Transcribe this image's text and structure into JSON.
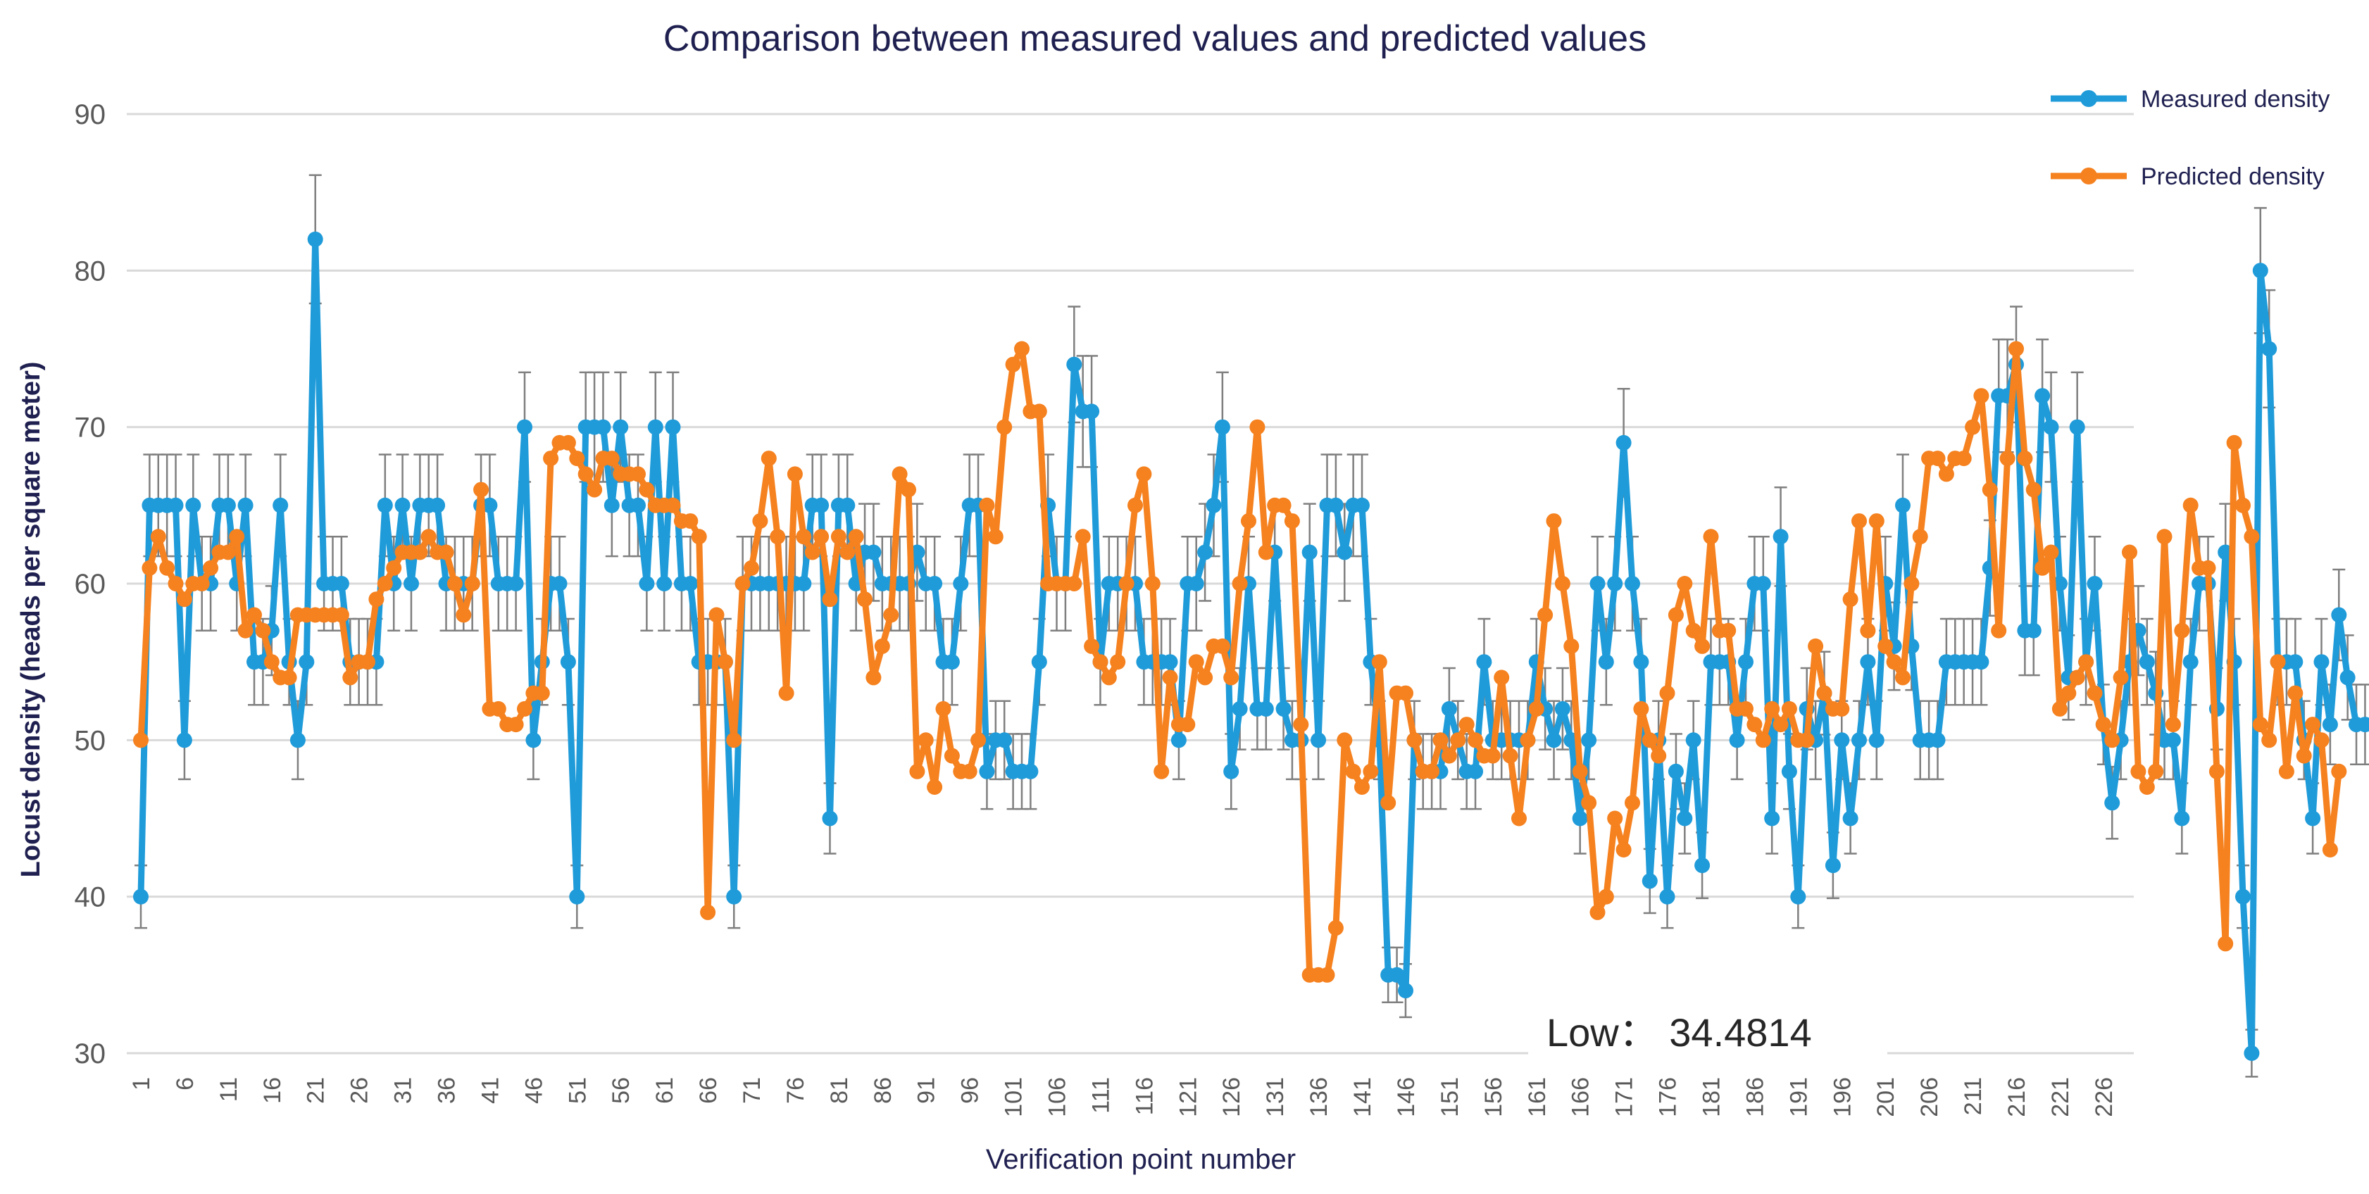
{
  "colors": {
    "measured": "#1f9bd9",
    "predicted": "#f5811f",
    "grid": "#d9d9d9",
    "errorbar": "#7f7f7f",
    "title": "#1f2050"
  },
  "chart_data": {
    "type": "line",
    "title": "Comparison between measured values and predicted values",
    "xlabel": "Verification point number",
    "ylabel": "Locust density (heads per square meter)",
    "ylim": [
      30,
      90
    ],
    "yticks": [
      30,
      40,
      50,
      60,
      70,
      80,
      90
    ],
    "x_range": [
      1,
      229
    ],
    "xticks": [
      1,
      6,
      11,
      16,
      21,
      26,
      31,
      36,
      41,
      46,
      51,
      56,
      61,
      66,
      71,
      76,
      81,
      86,
      91,
      96,
      101,
      106,
      111,
      116,
      121,
      126,
      131,
      136,
      141,
      146,
      151,
      156,
      161,
      166,
      171,
      176,
      181,
      186,
      191,
      196,
      201,
      206,
      211,
      216,
      221,
      226
    ],
    "grid": true,
    "legend_position": "top-right",
    "error_bar_relative": 0.05,
    "annotation": {
      "text": "Low：  34.4814",
      "x_data": 175,
      "y_data": 31.4
    },
    "series": [
      {
        "name": "Measured density",
        "values": [
          40,
          65,
          65,
          65,
          65,
          50,
          65,
          60,
          60,
          65,
          65,
          60,
          65,
          55,
          55,
          57,
          65,
          55,
          50,
          55,
          82,
          60,
          60,
          60,
          55,
          55,
          55,
          55,
          65,
          60,
          65,
          60,
          65,
          65,
          65,
          60,
          60,
          60,
          60,
          65,
          65,
          60,
          60,
          60,
          70,
          50,
          55,
          60,
          60,
          55,
          40,
          70,
          70,
          70,
          65,
          70,
          65,
          65,
          60,
          70,
          60,
          70,
          60,
          60,
          55,
          55,
          55,
          55,
          40,
          60,
          60,
          60,
          60,
          60,
          60,
          60,
          60,
          65,
          65,
          45,
          65,
          65,
          60,
          62,
          62,
          60,
          60,
          60,
          60,
          62,
          60,
          60,
          55,
          55,
          60,
          65,
          65,
          48,
          50,
          50,
          48,
          48,
          48,
          55,
          65,
          60,
          60,
          74,
          71,
          71,
          55,
          60,
          60,
          60,
          60,
          55,
          55,
          55,
          55,
          50,
          60,
          60,
          62,
          65,
          70,
          48,
          52,
          60,
          52,
          52,
          62,
          52,
          50,
          50,
          62,
          50,
          65,
          65,
          62,
          65,
          65,
          55,
          50,
          35,
          35,
          34,
          50,
          48,
          48,
          48,
          52,
          50,
          48,
          48,
          55,
          50,
          50,
          50,
          50,
          50,
          55,
          52,
          50,
          52,
          50,
          45,
          50,
          60,
          55,
          60,
          69,
          60,
          55,
          41,
          50,
          40,
          48,
          45,
          50,
          42,
          55,
          55,
          55,
          50,
          55,
          60,
          60,
          45,
          63,
          48,
          40,
          52,
          50,
          53,
          42,
          50,
          45,
          50,
          55,
          50,
          60,
          56,
          65,
          56,
          50,
          50,
          50,
          55,
          55,
          55,
          55,
          55,
          61,
          72,
          72,
          74,
          57,
          57,
          72,
          70,
          60,
          54,
          70,
          55,
          60,
          51,
          46,
          50,
          55,
          57,
          55,
          53,
          50,
          50,
          45,
          55,
          60,
          60,
          52,
          62,
          55,
          40,
          30,
          80,
          75,
          55,
          55,
          55,
          50,
          45,
          55,
          51,
          58,
          54,
          51,
          51
        ]
      },
      {
        "name": "Predicted density",
        "values": [
          50,
          61,
          63,
          61,
          60,
          59,
          60,
          60,
          61,
          62,
          62,
          63,
          57,
          58,
          57,
          55,
          54,
          54,
          58,
          58,
          58,
          58,
          58,
          58,
          54,
          55,
          55,
          59,
          60,
          61,
          62,
          62,
          62,
          63,
          62,
          62,
          60,
          58,
          60,
          66,
          52,
          52,
          51,
          51,
          52,
          53,
          53,
          68,
          69,
          69,
          68,
          67,
          66,
          68,
          68,
          67,
          67,
          67,
          66,
          65,
          65,
          65,
          64,
          64,
          63,
          39,
          58,
          55,
          50,
          60,
          61,
          64,
          68,
          63,
          53,
          67,
          63,
          62,
          63,
          59,
          63,
          62,
          63,
          59,
          54,
          56,
          58,
          67,
          66,
          48,
          50,
          47,
          52,
          49,
          48,
          48,
          50,
          65,
          63,
          70,
          74,
          75,
          71,
          71,
          60,
          60,
          60,
          60,
          63,
          56,
          55,
          54,
          55,
          60,
          65,
          67,
          60,
          48,
          54,
          51,
          51,
          55,
          54,
          56,
          56,
          54,
          60,
          64,
          70,
          62,
          65,
          65,
          64,
          51,
          35,
          35,
          35,
          38,
          50,
          48,
          47,
          48,
          55,
          46,
          53,
          53,
          50,
          48,
          48,
          50,
          49,
          50,
          51,
          50,
          49,
          49,
          54,
          49,
          45,
          50,
          52,
          58,
          64,
          60,
          56,
          48,
          46,
          39,
          40,
          45,
          43,
          46,
          52,
          50,
          49,
          53,
          58,
          60,
          57,
          56,
          63,
          57,
          57,
          52,
          52,
          51,
          50,
          52,
          51,
          52,
          50,
          50,
          56,
          53,
          52,
          52,
          59,
          64,
          57,
          64,
          56,
          55,
          54,
          60,
          63,
          68,
          68,
          67,
          68,
          68,
          70,
          72,
          66,
          57,
          68,
          75,
          68,
          66,
          61,
          62,
          52,
          53,
          54,
          55,
          53,
          51,
          50,
          54,
          62,
          48,
          47,
          48,
          63,
          51,
          57,
          65,
          61,
          61,
          48,
          37,
          69,
          65,
          63,
          51,
          50,
          55,
          48,
          53,
          49,
          51,
          50,
          43,
          48
        ]
      }
    ]
  }
}
